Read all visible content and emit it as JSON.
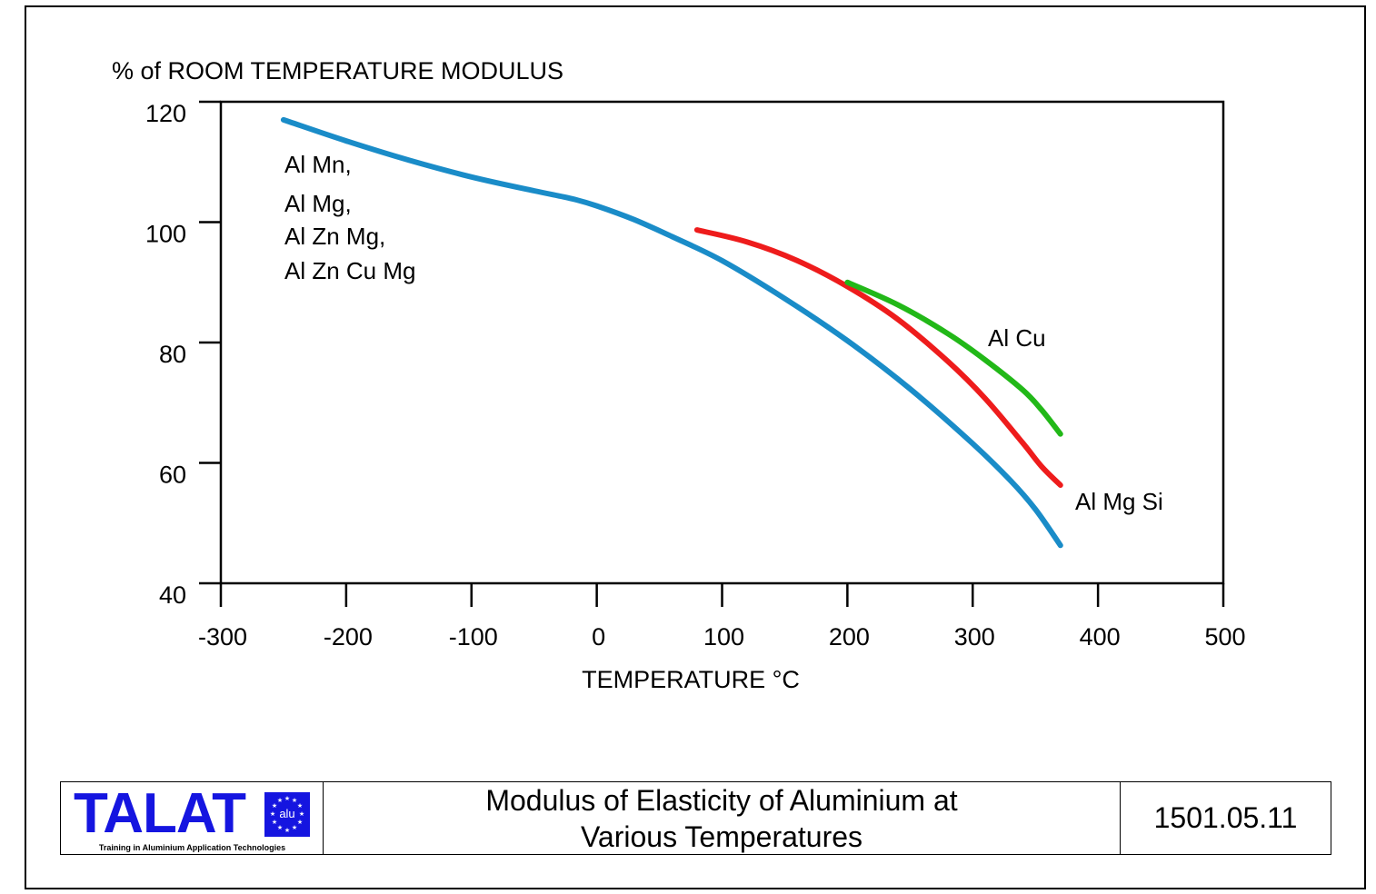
{
  "chart_data": {
    "type": "line",
    "ylabel": "% of ROOM TEMPERATURE MODULUS",
    "xlabel": "TEMPERATURE   °C",
    "xlim": [
      -300,
      500
    ],
    "ylim": [
      40,
      120
    ],
    "x_ticks": [
      "-300",
      "-200",
      "-100",
      "0",
      "100",
      "200",
      "300",
      "400",
      "500"
    ],
    "y_ticks": [
      "40",
      "60",
      "80",
      "100",
      "120"
    ],
    "grid": false,
    "series": [
      {
        "name": "Al Mn,\nAl Mg,\nAl Zn Mg,\nAl Zn Cu Mg",
        "color": "#1a8cc8",
        "points": [
          [
            -250,
            117
          ],
          [
            -200,
            113.5
          ],
          [
            -150,
            110.3
          ],
          [
            -100,
            107.5
          ],
          [
            -50,
            105.2
          ],
          [
            -20,
            103.9
          ],
          [
            0,
            102.7
          ],
          [
            30,
            100.4
          ],
          [
            60,
            97.6
          ],
          [
            100,
            93.6
          ],
          [
            150,
            87.3
          ],
          [
            200,
            80.3
          ],
          [
            250,
            72.3
          ],
          [
            300,
            63.2
          ],
          [
            330,
            57.1
          ],
          [
            350,
            52.3
          ],
          [
            370,
            46.3
          ]
        ]
      },
      {
        "name": "Al Mg Si",
        "color": "#ee1c1c",
        "points": [
          [
            80,
            98.7
          ],
          [
            120,
            96.7
          ],
          [
            160,
            93.6
          ],
          [
            200,
            89.3
          ],
          [
            240,
            83.9
          ],
          [
            280,
            76.9
          ],
          [
            310,
            70.7
          ],
          [
            340,
            63.3
          ],
          [
            355,
            59.4
          ],
          [
            370,
            56.3
          ]
        ]
      },
      {
        "name": "Al Cu",
        "color": "#22b818",
        "points": [
          [
            200,
            90
          ],
          [
            240,
            86.3
          ],
          [
            280,
            81.5
          ],
          [
            310,
            77.1
          ],
          [
            340,
            72.1
          ],
          [
            355,
            68.8
          ],
          [
            370,
            64.8
          ]
        ]
      }
    ]
  },
  "annotations": {
    "al_mn": "Al Mn,",
    "al_mg": "Al Mg,",
    "al_zn_mg": "Al Zn Mg,",
    "al_zn_cu_mg": "Al Zn Cu Mg",
    "al_cu": "Al Cu",
    "al_mg_si": "Al Mg Si"
  },
  "footer": {
    "logo_text": "TALAT",
    "logo_badge": "alu",
    "logo_tagline": "Training in Aluminium Application Technologies",
    "title_line1": "Modulus of Elasticity of Aluminium at",
    "title_line2": "Various Temperatures",
    "code": "1501.05.11"
  },
  "colors": {
    "logo_blue": "#1515e0"
  }
}
